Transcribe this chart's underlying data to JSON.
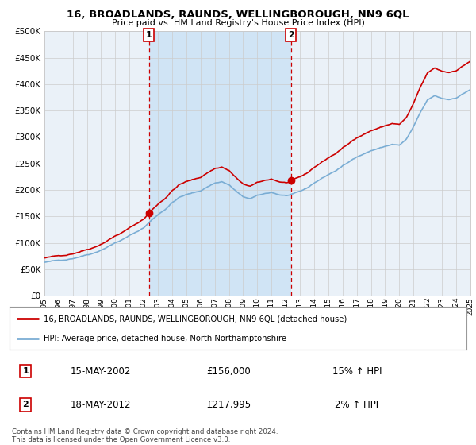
{
  "title": "16, BROADLANDS, RAUNDS, WELLINGBOROUGH, NN9 6QL",
  "subtitle": "Price paid vs. HM Land Registry's House Price Index (HPI)",
  "legend_line1": "16, BROADLANDS, RAUNDS, WELLINGBOROUGH, NN9 6QL (detached house)",
  "legend_line2": "HPI: Average price, detached house, North Northamptonshire",
  "transaction1_label": "1",
  "transaction1_date": "15-MAY-2002",
  "transaction1_price": "£156,000",
  "transaction1_hpi": "15% ↑ HPI",
  "transaction2_label": "2",
  "transaction2_date": "18-MAY-2012",
  "transaction2_price": "£217,995",
  "transaction2_hpi": "2% ↑ HPI",
  "footnote": "Contains HM Land Registry data © Crown copyright and database right 2024.\nThis data is licensed under the Open Government Licence v3.0.",
  "sale_color": "#cc0000",
  "hpi_color": "#7aadd4",
  "highlight_color": "#d0e4f5",
  "vline_color": "#cc0000",
  "background_color": "#ffffff",
  "grid_color": "#cccccc",
  "plot_bg_color": "#eaf1f8",
  "ylim": [
    0,
    500000
  ],
  "yticks": [
    0,
    50000,
    100000,
    150000,
    200000,
    250000,
    300000,
    350000,
    400000,
    450000,
    500000
  ],
  "sale1_x": 2002.37,
  "sale1_y": 156000,
  "sale2_x": 2012.37,
  "sale2_y": 217995,
  "xmin": 1995,
  "xmax": 2025
}
